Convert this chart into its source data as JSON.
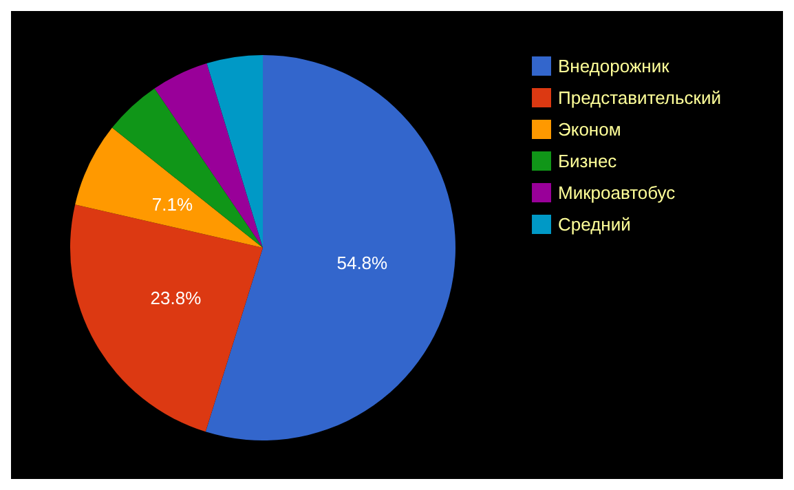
{
  "chart_data": {
    "type": "pie",
    "categories": [
      "Внедорожник",
      "Представительский",
      "Эконом",
      "Бизнес",
      "Микроавтобус",
      "Средний"
    ],
    "values": [
      54.8,
      23.8,
      7.1,
      4.8,
      4.8,
      4.7
    ],
    "colors": [
      "#3366cc",
      "#dc3912",
      "#ff9900",
      "#109618",
      "#990099",
      "#0099c6"
    ],
    "value_labels": [
      "54.8%",
      "23.8%",
      "7.1%",
      null,
      null,
      null
    ],
    "legend": "top right"
  }
}
